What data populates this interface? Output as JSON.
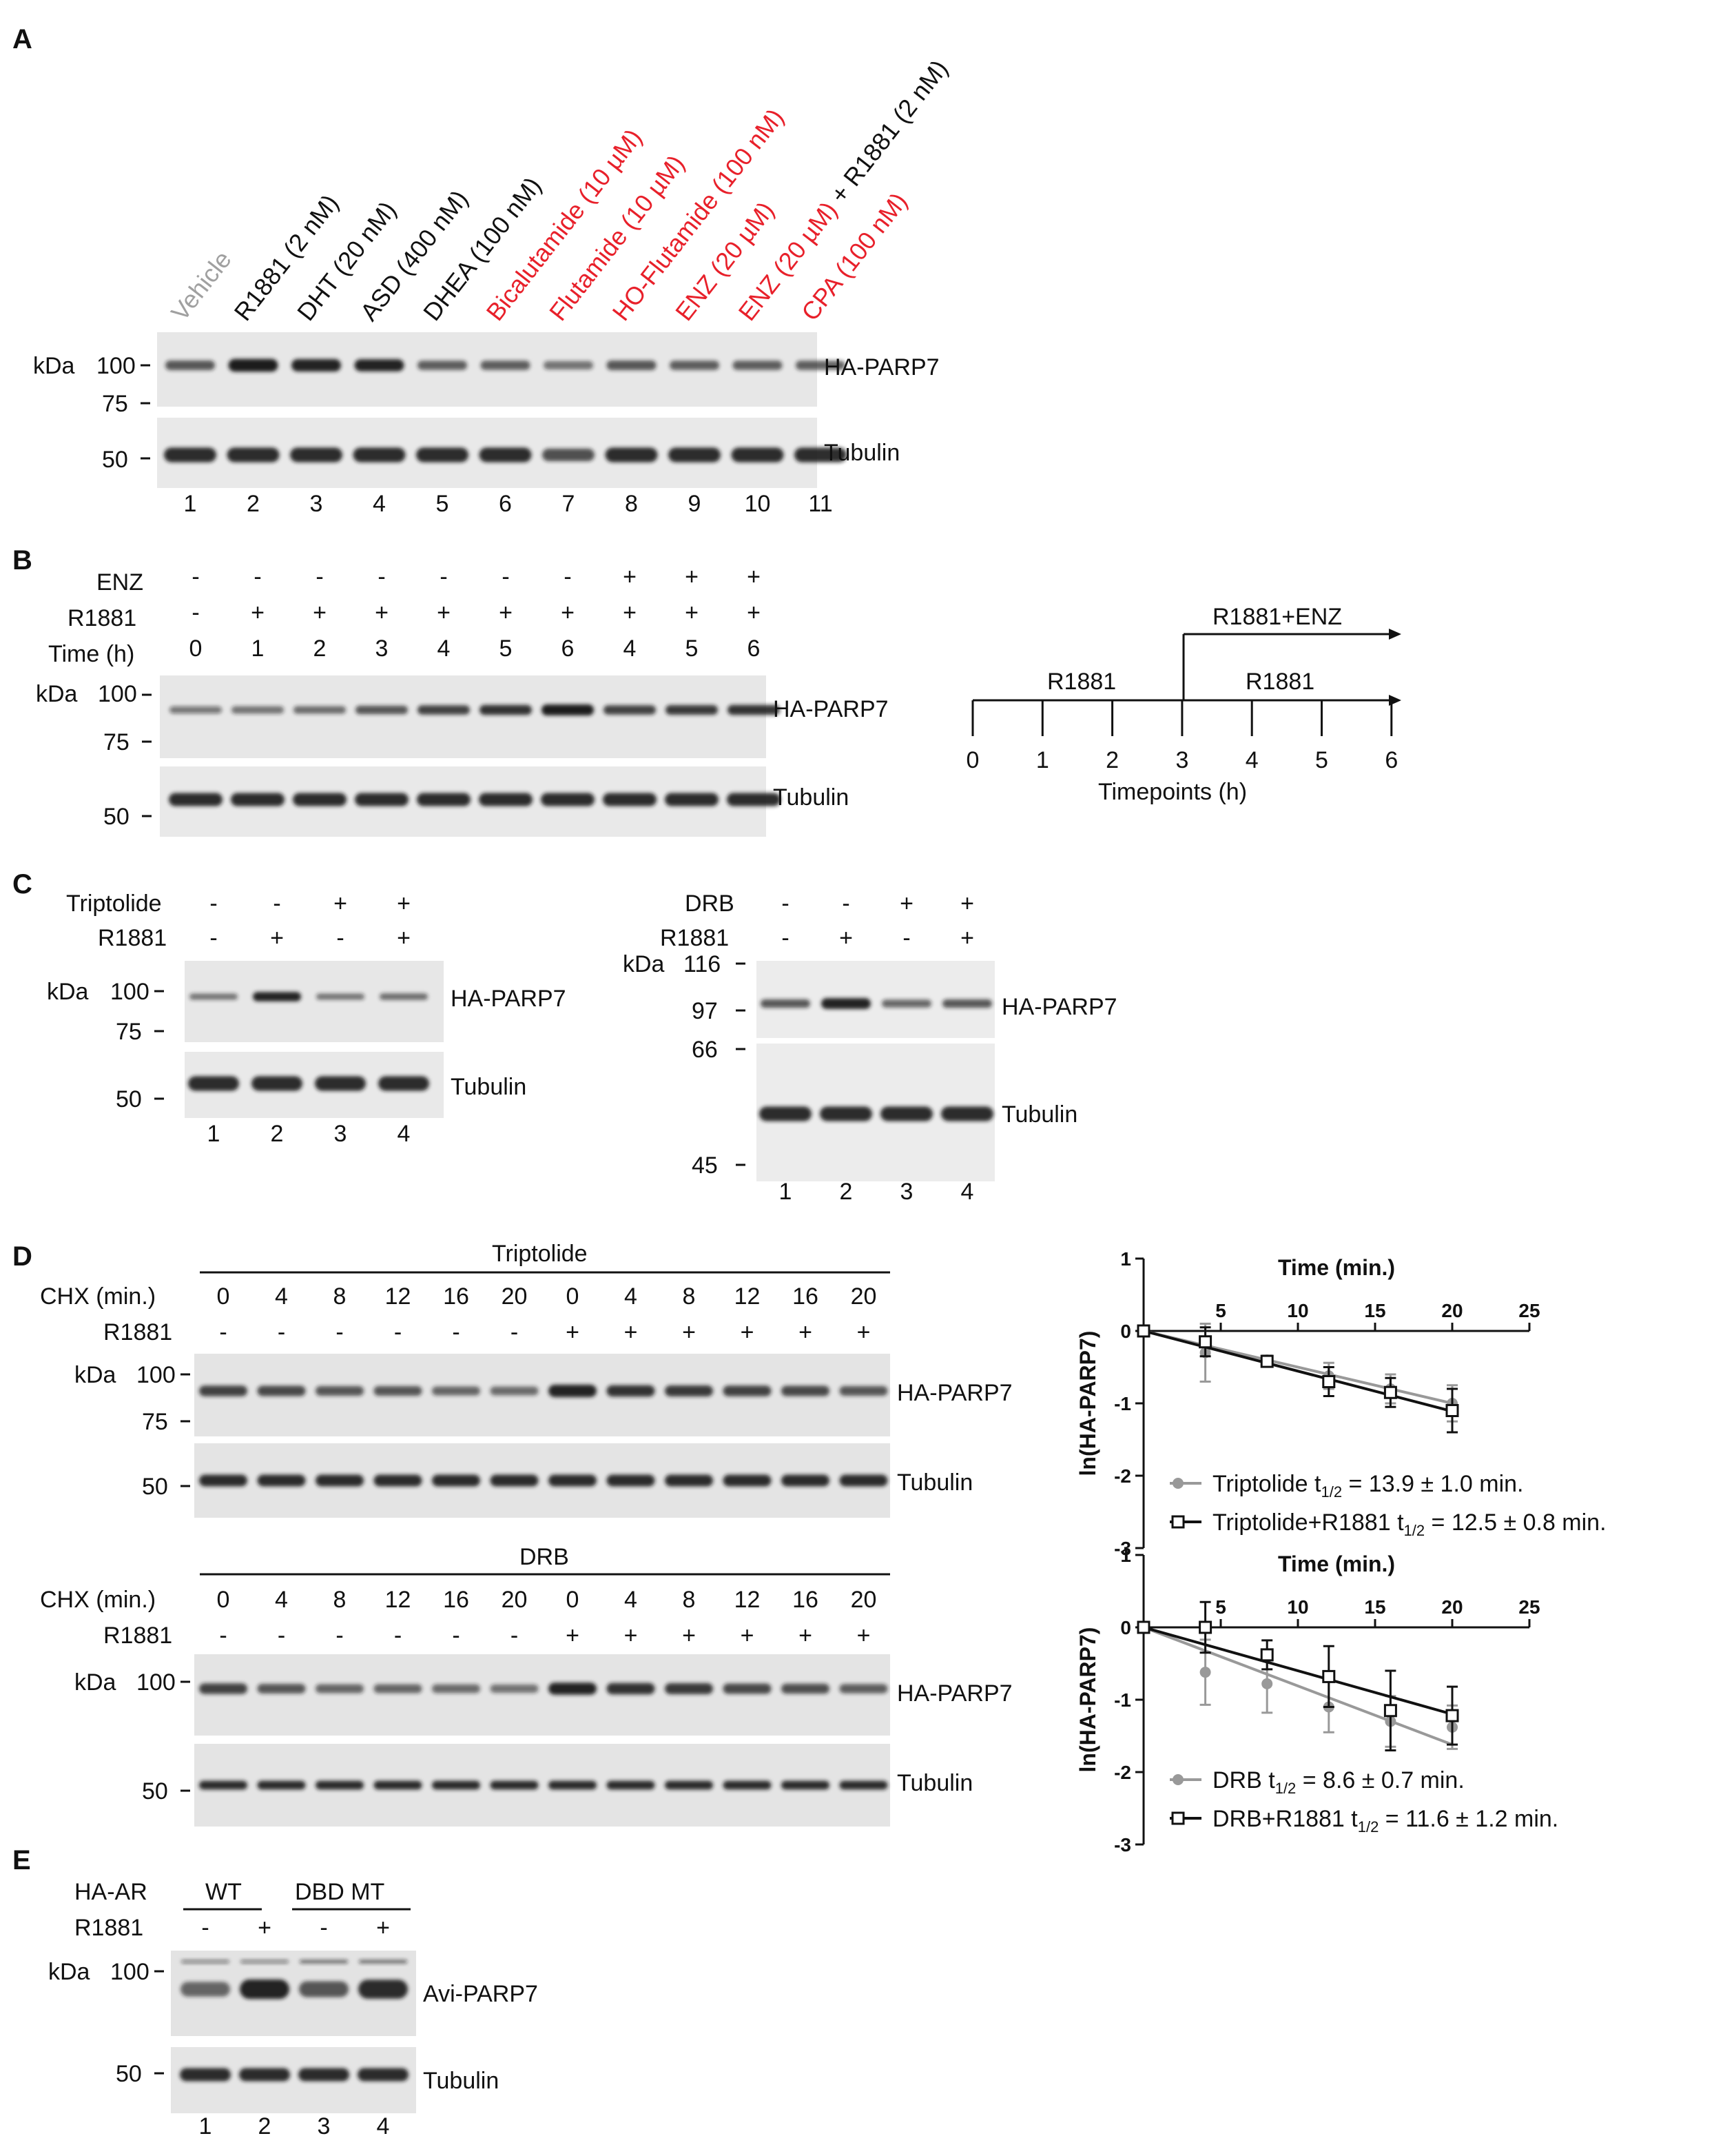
{
  "panels": {
    "A": "A",
    "B": "B",
    "C": "C",
    "D": "D",
    "E": "E"
  },
  "panelA": {
    "treatments": [
      {
        "text": "Vehicle",
        "color": "#a0a0a0"
      },
      {
        "text": "R1881 (2 nM)",
        "color": "#111111"
      },
      {
        "text": "DHT (20 nM)",
        "color": "#111111"
      },
      {
        "text": "ASD (400 nM)",
        "color": "#111111"
      },
      {
        "text": "DHEA (100 nM)",
        "color": "#111111"
      },
      {
        "text": "Bicalutamide (10 µM)",
        "color": "#e8202a"
      },
      {
        "text": "Flutamide (10 µM)",
        "color": "#e8202a"
      },
      {
        "text": "HO-Flutamide (100 nM)",
        "color": "#e8202a"
      },
      {
        "text": "ENZ (20 µM)",
        "color": "#e8202a"
      },
      {
        "text": "ENZ (20 µM)",
        "color": "#e8202a",
        "suffix": " + R1881 (2 nM)"
      },
      {
        "text": "CPA (100 nM)",
        "color": "#e8202a"
      }
    ],
    "kda": "kDa",
    "markers_top": [
      "100",
      "75"
    ],
    "markers_bottom": [
      "50"
    ],
    "blot_labels": [
      "HA-PARP7",
      "Tubulin"
    ],
    "lanes": [
      "1",
      "2",
      "3",
      "4",
      "5",
      "6",
      "7",
      "8",
      "9",
      "10",
      "11"
    ],
    "parp7_intensity": [
      0.55,
      1.0,
      0.95,
      0.9,
      0.5,
      0.5,
      0.35,
      0.55,
      0.5,
      0.5,
      0.5
    ]
  },
  "panelB": {
    "row_labels": [
      "ENZ",
      "R1881",
      "Time (h)"
    ],
    "enz": [
      "-",
      "-",
      "-",
      "-",
      "-",
      "-",
      "-",
      "+",
      "+",
      "+"
    ],
    "r1881": [
      "-",
      "+",
      "+",
      "+",
      "+",
      "+",
      "+",
      "+",
      "+",
      "+"
    ],
    "time": [
      "0",
      "1",
      "2",
      "3",
      "4",
      "5",
      "6",
      "4",
      "5",
      "6"
    ],
    "kda": "kDa",
    "markers_top": [
      "100",
      "75"
    ],
    "markers_bottom": [
      "50"
    ],
    "blot_labels": [
      "HA-PARP7",
      "Tubulin"
    ],
    "parp7_intensity": [
      0.3,
      0.35,
      0.4,
      0.55,
      0.7,
      0.8,
      1.0,
      0.7,
      0.75,
      0.8
    ],
    "timeline": {
      "ticks": [
        "0",
        "1",
        "2",
        "3",
        "4",
        "5",
        "6"
      ],
      "axis_title": "Timepoints (h)",
      "upper_label": "R1881+ENZ",
      "lower_label": "R1881"
    }
  },
  "panelC": {
    "left": {
      "row_labels": [
        "Triptolide",
        "R1881"
      ],
      "triptolide": [
        "-",
        "-",
        "+",
        "+"
      ],
      "r1881": [
        "-",
        "+",
        "-",
        "+"
      ],
      "kda": "kDa",
      "markers_top": [
        "100",
        "75"
      ],
      "markers_bottom": [
        "50"
      ],
      "blot_labels": [
        "HA-PARP7",
        "Tubulin"
      ],
      "lanes": [
        "1",
        "2",
        "3",
        "4"
      ],
      "parp7_intensity": [
        0.35,
        0.95,
        0.35,
        0.4
      ]
    },
    "right": {
      "row_labels": [
        "DRB",
        "R1881"
      ],
      "drb": [
        "-",
        "-",
        "+",
        "+"
      ],
      "r1881": [
        "-",
        "+",
        "-",
        "+"
      ],
      "kda": "kDa",
      "markers_top": [
        "116",
        "97"
      ],
      "markers_bottom": [
        "66",
        "45"
      ],
      "blot_labels": [
        "HA-PARP7",
        "Tubulin"
      ],
      "lanes": [
        "1",
        "2",
        "3",
        "4"
      ],
      "parp7_intensity": [
        0.55,
        0.95,
        0.45,
        0.55
      ]
    }
  },
  "panelD": {
    "triptolide": {
      "header": "Triptolide",
      "row_labels": [
        "CHX (min.)",
        "R1881"
      ],
      "chx": [
        "0",
        "4",
        "8",
        "12",
        "16",
        "20",
        "0",
        "4",
        "8",
        "12",
        "16",
        "20"
      ],
      "r1881": [
        "-",
        "-",
        "-",
        "-",
        "-",
        "-",
        "+",
        "+",
        "+",
        "+",
        "+",
        "+"
      ],
      "kda": "kDa",
      "markers_top": [
        "100",
        "75"
      ],
      "markers_bottom": [
        "50"
      ],
      "blot_labels": [
        "HA-PARP7",
        "Tubulin"
      ],
      "parp7_intensity": [
        0.7,
        0.65,
        0.55,
        0.55,
        0.45,
        0.4,
        0.95,
        0.8,
        0.75,
        0.7,
        0.65,
        0.55
      ]
    },
    "drb": {
      "header": "DRB",
      "row_labels": [
        "CHX (min.)",
        "R1881"
      ],
      "chx": [
        "0",
        "4",
        "8",
        "12",
        "16",
        "20",
        "0",
        "4",
        "8",
        "12",
        "16",
        "20"
      ],
      "r1881": [
        "-",
        "-",
        "-",
        "-",
        "-",
        "-",
        "+",
        "+",
        "+",
        "+",
        "+",
        "+"
      ],
      "kda": "kDa",
      "markers_top": [
        "100"
      ],
      "markers_bottom": [
        "50"
      ],
      "blot_labels": [
        "HA-PARP7",
        "Tubulin"
      ],
      "parp7_intensity": [
        0.7,
        0.55,
        0.45,
        0.45,
        0.4,
        0.35,
        0.9,
        0.8,
        0.75,
        0.65,
        0.6,
        0.5
      ]
    }
  },
  "chart_data": [
    {
      "type": "line",
      "title": "Time (min.)",
      "xlabel": "Time (min.)",
      "ylabel": "ln(HA-PARP7)",
      "xlim": [
        0,
        25
      ],
      "ylim": [
        -3,
        1
      ],
      "xticks": [
        "5",
        "10",
        "15",
        "20",
        "25"
      ],
      "yticks": [
        "1",
        "0",
        "-1",
        "-2",
        "-3"
      ],
      "x": [
        0,
        4,
        8,
        12,
        16,
        20
      ],
      "series": [
        {
          "name": "Triptolide t1/2 = 13.9 ± 1.0 min.",
          "marker": "circle",
          "color": "#999999",
          "values": [
            0,
            -0.3,
            -0.4,
            -0.62,
            -0.8,
            -1.0
          ],
          "errors": [
            0,
            0.4,
            0.06,
            0.18,
            0.2,
            0.25
          ],
          "fit": [
            0,
            -1.0
          ]
        },
        {
          "name": "Triptolide+R1881 t1/2 = 12.5 ± 0.8 min.",
          "marker": "square",
          "color": "#111111",
          "values": [
            0,
            -0.15,
            -0.42,
            -0.7,
            -0.85,
            -1.1
          ],
          "errors": [
            0,
            0.2,
            0.06,
            0.2,
            0.2,
            0.3
          ],
          "fit": [
            0,
            -1.11
          ]
        }
      ],
      "legend": [
        {
          "prefix": "Triptolide t",
          "sub": "1/2",
          "suffix": " = 13.9 ± 1.0 min."
        },
        {
          "prefix": "Triptolide+R1881 t",
          "sub": "1/2",
          "suffix": " = 12.5 ± 0.8 min."
        }
      ]
    },
    {
      "type": "line",
      "title": "Time (min.)",
      "xlabel": "Time (min.)",
      "ylabel": "ln(HA-PARP7)",
      "xlim": [
        0,
        25
      ],
      "ylim": [
        -3,
        1
      ],
      "xticks": [
        "5",
        "10",
        "15",
        "20",
        "25"
      ],
      "yticks": [
        "1",
        "0",
        "-1",
        "-2",
        "-3"
      ],
      "x": [
        0,
        4,
        8,
        12,
        16,
        20
      ],
      "series": [
        {
          "name": "DRB t1/2 = 8.6 ± 0.7 min.",
          "marker": "circle",
          "color": "#999999",
          "values": [
            0,
            -0.62,
            -0.78,
            -1.1,
            -1.3,
            -1.38
          ],
          "errors": [
            0,
            0.45,
            0.4,
            0.35,
            0.35,
            0.3
          ],
          "fit": [
            0,
            -1.62
          ]
        },
        {
          "name": "DRB+R1881 t1/2 = 11.6 ± 1.2 min.",
          "marker": "square",
          "color": "#111111",
          "values": [
            0,
            0,
            -0.38,
            -0.68,
            -1.15,
            -1.22
          ],
          "errors": [
            0,
            0.35,
            0.2,
            0.42,
            0.55,
            0.4
          ],
          "fit": [
            0,
            -1.2
          ]
        }
      ],
      "legend": [
        {
          "prefix": "DRB t",
          "sub": "1/2",
          "suffix": " = 8.6 ± 0.7 min."
        },
        {
          "prefix": "DRB+R1881 t",
          "sub": "1/2",
          "suffix": " = 11.6 ± 1.2 min."
        }
      ]
    }
  ],
  "panelE": {
    "row_labels": [
      "HA-AR",
      "R1881"
    ],
    "groups": [
      "WT",
      "DBD MT"
    ],
    "r1881": [
      "-",
      "+",
      "-",
      "+"
    ],
    "kda": "kDa",
    "markers_top": [
      "100"
    ],
    "markers_bottom": [
      "50"
    ],
    "blot_labels": [
      "Avi-PARP7",
      "Tubulin"
    ],
    "lanes": [
      "1",
      "2",
      "3",
      "4"
    ],
    "parp7_intensity": [
      0.45,
      0.9,
      0.55,
      0.85
    ]
  }
}
